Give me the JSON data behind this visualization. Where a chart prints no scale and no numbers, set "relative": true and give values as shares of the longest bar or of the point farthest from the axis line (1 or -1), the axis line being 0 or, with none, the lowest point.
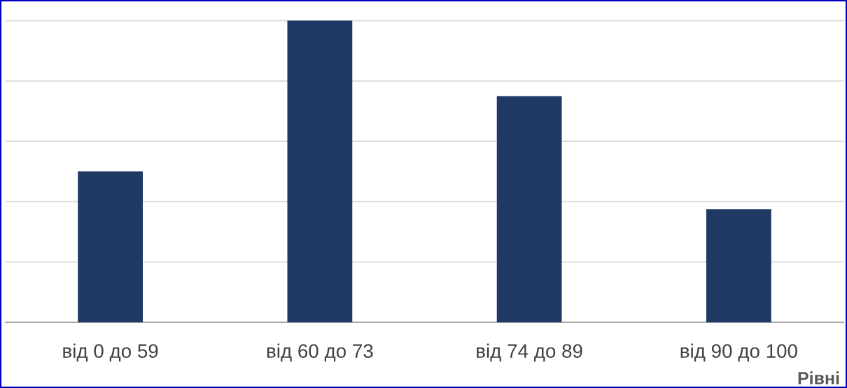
{
  "chart_data": {
    "type": "bar",
    "relative": true,
    "xlabel": "Рівні",
    "categories": [
      "від 0 до 59",
      "від 60 до 73",
      "від 74 до 89",
      "від 90 до 100"
    ],
    "values": [
      0.5,
      1,
      0.75,
      0.375
    ],
    "color": "#203864",
    "grid": "y",
    "legend": false
  }
}
